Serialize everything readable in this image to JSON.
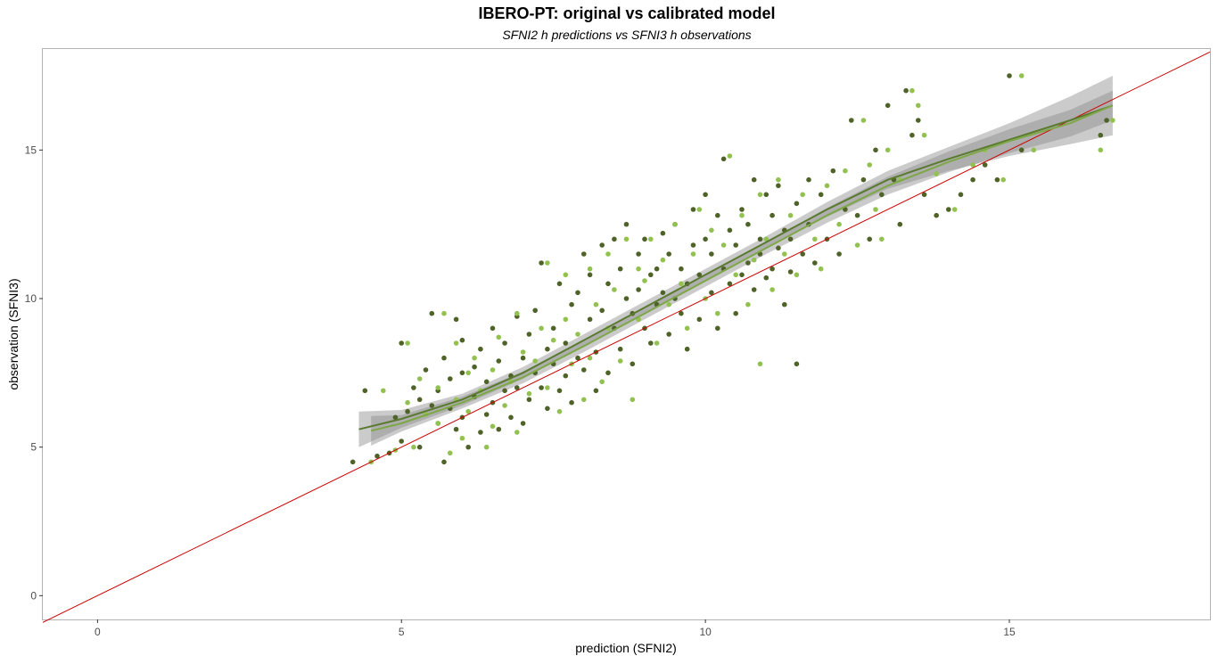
{
  "chart_data": {
    "type": "scatter",
    "title": "IBERO-PT: original vs calibrated model",
    "subtitle": "SFNI2 h predictions vs SFNI3 h observations",
    "xlabel": "prediction (SFNI2)",
    "ylabel": "observation (SFNI3)",
    "xlim": [
      -0.9,
      18.3
    ],
    "ylim": [
      -0.8,
      18.4
    ],
    "x_ticks": [
      0,
      5,
      10,
      15
    ],
    "y_ticks": [
      0,
      5,
      10,
      15
    ],
    "grid": false,
    "reference_line": {
      "slope": 1,
      "intercept": 0,
      "color": "#cc0000"
    },
    "series": [
      {
        "color": "#4f6228",
        "points": [
          [
            4.2,
            4.5
          ],
          [
            4.4,
            6.9
          ],
          [
            4.6,
            4.7
          ],
          [
            4.8,
            4.8
          ],
          [
            4.9,
            6.0
          ],
          [
            5.0,
            8.5
          ],
          [
            5.0,
            5.2
          ],
          [
            5.1,
            6.2
          ],
          [
            5.2,
            7.0
          ],
          [
            5.3,
            6.6
          ],
          [
            5.3,
            5.0
          ],
          [
            5.4,
            7.6
          ],
          [
            5.5,
            9.5
          ],
          [
            5.5,
            6.4
          ],
          [
            5.6,
            6.9
          ],
          [
            5.6,
            5.8
          ],
          [
            5.7,
            4.5
          ],
          [
            5.7,
            8.0
          ],
          [
            5.8,
            7.3
          ],
          [
            5.8,
            6.3
          ],
          [
            5.9,
            9.3
          ],
          [
            5.9,
            5.6
          ],
          [
            6.0,
            8.6
          ],
          [
            6.0,
            6.0
          ],
          [
            6.0,
            7.5
          ],
          [
            6.1,
            5.0
          ],
          [
            6.2,
            6.7
          ],
          [
            6.2,
            7.7
          ],
          [
            6.3,
            5.5
          ],
          [
            6.3,
            8.3
          ],
          [
            6.4,
            6.1
          ],
          [
            6.4,
            7.2
          ],
          [
            6.5,
            9.0
          ],
          [
            6.5,
            6.5
          ],
          [
            6.6,
            5.6
          ],
          [
            6.6,
            7.9
          ],
          [
            6.7,
            6.9
          ],
          [
            6.7,
            8.5
          ],
          [
            6.8,
            7.4
          ],
          [
            6.8,
            6.0
          ],
          [
            6.9,
            9.4
          ],
          [
            6.9,
            7.0
          ],
          [
            7.0,
            8.0
          ],
          [
            7.0,
            5.8
          ],
          [
            7.1,
            6.6
          ],
          [
            7.1,
            8.8
          ],
          [
            7.2,
            7.5
          ],
          [
            7.2,
            9.6
          ],
          [
            7.3,
            7.0
          ],
          [
            7.3,
            11.2
          ],
          [
            7.4,
            8.3
          ],
          [
            7.4,
            6.3
          ],
          [
            7.5,
            9.0
          ],
          [
            7.5,
            7.8
          ],
          [
            7.6,
            10.5
          ],
          [
            7.6,
            6.9
          ],
          [
            7.7,
            8.5
          ],
          [
            7.7,
            7.4
          ],
          [
            7.8,
            9.8
          ],
          [
            7.8,
            6.5
          ],
          [
            7.9,
            10.2
          ],
          [
            7.9,
            8.0
          ],
          [
            8.0,
            11.5
          ],
          [
            8.0,
            7.6
          ],
          [
            8.1,
            9.3
          ],
          [
            8.1,
            10.8
          ],
          [
            8.2,
            8.2
          ],
          [
            8.2,
            6.9
          ],
          [
            8.3,
            11.8
          ],
          [
            8.3,
            9.6
          ],
          [
            8.4,
            10.5
          ],
          [
            8.4,
            7.5
          ],
          [
            8.5,
            12.0
          ],
          [
            8.5,
            9.0
          ],
          [
            8.6,
            11.0
          ],
          [
            8.6,
            8.3
          ],
          [
            8.7,
            10.0
          ],
          [
            8.7,
            12.5
          ],
          [
            8.8,
            9.5
          ],
          [
            8.8,
            7.8
          ],
          [
            8.9,
            11.5
          ],
          [
            8.9,
            10.3
          ],
          [
            9.0,
            9.0
          ],
          [
            9.0,
            12.0
          ],
          [
            9.1,
            10.8
          ],
          [
            9.1,
            8.5
          ],
          [
            9.2,
            11.0
          ],
          [
            9.2,
            9.8
          ],
          [
            9.3,
            12.2
          ],
          [
            9.3,
            10.2
          ],
          [
            9.4,
            8.8
          ],
          [
            9.4,
            11.5
          ],
          [
            9.5,
            10.0
          ],
          [
            9.5,
            12.5
          ],
          [
            9.6,
            9.5
          ],
          [
            9.6,
            11.0
          ],
          [
            9.7,
            10.5
          ],
          [
            9.7,
            8.3
          ],
          [
            9.8,
            11.8
          ],
          [
            9.8,
            13.0
          ],
          [
            9.9,
            10.8
          ],
          [
            9.9,
            9.3
          ],
          [
            10.0,
            12.0
          ],
          [
            10.0,
            13.5
          ],
          [
            10.1,
            10.2
          ],
          [
            10.1,
            11.5
          ],
          [
            10.2,
            9.0
          ],
          [
            10.2,
            12.8
          ],
          [
            10.3,
            11.0
          ],
          [
            10.3,
            14.7
          ],
          [
            10.4,
            10.5
          ],
          [
            10.4,
            12.3
          ],
          [
            10.5,
            11.8
          ],
          [
            10.5,
            9.5
          ],
          [
            10.6,
            13.0
          ],
          [
            10.6,
            10.8
          ],
          [
            10.7,
            12.5
          ],
          [
            10.7,
            11.2
          ],
          [
            10.8,
            14.0
          ],
          [
            10.8,
            10.3
          ],
          [
            10.9,
            12.0
          ],
          [
            10.9,
            11.5
          ],
          [
            11.0,
            13.5
          ],
          [
            11.0,
            10.7
          ],
          [
            11.1,
            12.8
          ],
          [
            11.1,
            11.0
          ],
          [
            11.2,
            13.8
          ],
          [
            11.2,
            11.7
          ],
          [
            11.3,
            9.8
          ],
          [
            11.3,
            12.3
          ],
          [
            11.4,
            12.0
          ],
          [
            11.4,
            10.9
          ],
          [
            11.5,
            13.2
          ],
          [
            11.6,
            11.5
          ],
          [
            11.7,
            14.0
          ],
          [
            11.7,
            12.5
          ],
          [
            11.8,
            11.2
          ],
          [
            11.9,
            13.5
          ],
          [
            12.0,
            12.0
          ],
          [
            12.1,
            14.3
          ],
          [
            12.2,
            11.5
          ],
          [
            12.3,
            13.0
          ],
          [
            12.4,
            16.0
          ],
          [
            12.5,
            12.8
          ],
          [
            12.6,
            14.0
          ],
          [
            12.7,
            12.0
          ],
          [
            12.8,
            15.0
          ],
          [
            12.9,
            13.5
          ],
          [
            13.0,
            16.5
          ],
          [
            13.1,
            14.0
          ],
          [
            13.2,
            12.5
          ],
          [
            13.3,
            17.0
          ],
          [
            13.4,
            15.5
          ],
          [
            13.5,
            16.0
          ],
          [
            13.6,
            13.5
          ],
          [
            13.8,
            12.8
          ],
          [
            14.0,
            13.0
          ],
          [
            14.2,
            13.5
          ],
          [
            14.4,
            14.0
          ],
          [
            14.6,
            14.5
          ],
          [
            14.8,
            14.0
          ],
          [
            15.0,
            17.5
          ],
          [
            15.2,
            15.0
          ],
          [
            16.5,
            15.5
          ],
          [
            16.6,
            16.0
          ],
          [
            11.5,
            7.8
          ]
        ]
      },
      {
        "color": "#92c150",
        "points": [
          [
            4.5,
            4.5
          ],
          [
            4.7,
            6.9
          ],
          [
            4.9,
            4.9
          ],
          [
            5.1,
            8.5
          ],
          [
            5.1,
            6.5
          ],
          [
            5.2,
            5.0
          ],
          [
            5.3,
            7.3
          ],
          [
            5.4,
            6.1
          ],
          [
            5.6,
            5.8
          ],
          [
            5.6,
            7.0
          ],
          [
            5.7,
            9.5
          ],
          [
            5.8,
            4.8
          ],
          [
            5.9,
            6.6
          ],
          [
            5.9,
            8.5
          ],
          [
            6.0,
            5.3
          ],
          [
            6.1,
            7.5
          ],
          [
            6.1,
            6.2
          ],
          [
            6.2,
            8.0
          ],
          [
            6.3,
            6.9
          ],
          [
            6.4,
            5.0
          ],
          [
            6.5,
            7.6
          ],
          [
            6.5,
            5.7
          ],
          [
            6.6,
            8.7
          ],
          [
            6.7,
            6.4
          ],
          [
            6.8,
            7.2
          ],
          [
            6.9,
            5.5
          ],
          [
            6.9,
            9.5
          ],
          [
            7.0,
            8.2
          ],
          [
            7.1,
            6.8
          ],
          [
            7.2,
            7.9
          ],
          [
            7.3,
            9.0
          ],
          [
            7.4,
            11.2
          ],
          [
            7.4,
            7.0
          ],
          [
            7.5,
            8.6
          ],
          [
            7.6,
            6.2
          ],
          [
            7.7,
            9.3
          ],
          [
            7.7,
            10.8
          ],
          [
            7.8,
            7.8
          ],
          [
            7.9,
            8.8
          ],
          [
            8.0,
            6.6
          ],
          [
            8.1,
            11.0
          ],
          [
            8.1,
            8.0
          ],
          [
            8.2,
            9.8
          ],
          [
            8.3,
            7.2
          ],
          [
            8.4,
            11.5
          ],
          [
            8.4,
            9.0
          ],
          [
            8.5,
            10.3
          ],
          [
            8.6,
            7.9
          ],
          [
            8.7,
            12.0
          ],
          [
            8.8,
            6.6
          ],
          [
            8.9,
            11.0
          ],
          [
            8.9,
            9.3
          ],
          [
            9.0,
            10.6
          ],
          [
            9.1,
            12.0
          ],
          [
            9.2,
            8.5
          ],
          [
            9.3,
            11.3
          ],
          [
            9.4,
            9.8
          ],
          [
            9.5,
            12.5
          ],
          [
            9.6,
            10.5
          ],
          [
            9.7,
            9.0
          ],
          [
            9.8,
            11.5
          ],
          [
            9.9,
            13.0
          ],
          [
            10.0,
            10.0
          ],
          [
            10.1,
            12.3
          ],
          [
            10.2,
            9.5
          ],
          [
            10.3,
            11.8
          ],
          [
            10.4,
            14.8
          ],
          [
            10.5,
            10.8
          ],
          [
            10.6,
            12.8
          ],
          [
            10.7,
            9.8
          ],
          [
            10.8,
            11.3
          ],
          [
            10.9,
            13.5
          ],
          [
            11.0,
            12.0
          ],
          [
            11.1,
            10.3
          ],
          [
            11.2,
            14.0
          ],
          [
            11.3,
            11.5
          ],
          [
            11.4,
            12.8
          ],
          [
            11.5,
            10.8
          ],
          [
            11.6,
            13.5
          ],
          [
            11.8,
            12.0
          ],
          [
            11.9,
            11.0
          ],
          [
            12.0,
            13.8
          ],
          [
            12.2,
            12.5
          ],
          [
            12.3,
            14.3
          ],
          [
            12.5,
            11.8
          ],
          [
            12.6,
            16.0
          ],
          [
            12.8,
            13.0
          ],
          [
            12.9,
            12.0
          ],
          [
            13.0,
            15.0
          ],
          [
            13.2,
            14.0
          ],
          [
            13.4,
            17.0
          ],
          [
            13.5,
            16.5
          ],
          [
            13.6,
            15.5
          ],
          [
            13.8,
            14.2
          ],
          [
            14.1,
            13.0
          ],
          [
            14.4,
            14.5
          ],
          [
            14.6,
            15.0
          ],
          [
            14.9,
            14.0
          ],
          [
            15.2,
            17.5
          ],
          [
            15.4,
            15.0
          ],
          [
            16.5,
            15.0
          ],
          [
            16.7,
            16.0
          ],
          [
            12.7,
            14.5
          ],
          [
            10.9,
            7.8
          ]
        ]
      },
      {
        "color": "#5a7a30",
        "smooth_curve": [
          [
            4.3,
            5.6
          ],
          [
            5.0,
            5.95
          ],
          [
            6.0,
            6.6
          ],
          [
            7.0,
            7.5
          ],
          [
            8.0,
            8.6
          ],
          [
            9.0,
            9.7
          ],
          [
            10.0,
            10.8
          ],
          [
            11.0,
            11.9
          ],
          [
            12.0,
            13.0
          ],
          [
            13.0,
            14.0
          ],
          [
            14.0,
            14.7
          ],
          [
            15.0,
            15.35
          ],
          [
            16.0,
            16.0
          ],
          [
            16.7,
            16.5
          ]
        ],
        "band_halfwidth": [
          0.6,
          0.3,
          0.2,
          0.2,
          0.2,
          0.2,
          0.2,
          0.2,
          0.25,
          0.3,
          0.4,
          0.55,
          0.8,
          1.0
        ]
      },
      {
        "color": "#7ea848",
        "smooth_curve": [
          [
            4.5,
            5.55
          ],
          [
            5.0,
            5.8
          ],
          [
            6.0,
            6.5
          ],
          [
            7.0,
            7.35
          ],
          [
            8.0,
            8.4
          ],
          [
            9.0,
            9.5
          ],
          [
            10.0,
            10.6
          ],
          [
            11.0,
            11.7
          ],
          [
            12.0,
            12.8
          ],
          [
            13.0,
            13.8
          ],
          [
            14.0,
            14.6
          ],
          [
            15.0,
            15.3
          ],
          [
            16.0,
            15.9
          ],
          [
            16.7,
            16.5
          ]
        ],
        "band_halfwidth": [
          0.5,
          0.28,
          0.2,
          0.2,
          0.2,
          0.2,
          0.2,
          0.2,
          0.25,
          0.3,
          0.35,
          0.4,
          0.45,
          0.5
        ]
      }
    ]
  }
}
